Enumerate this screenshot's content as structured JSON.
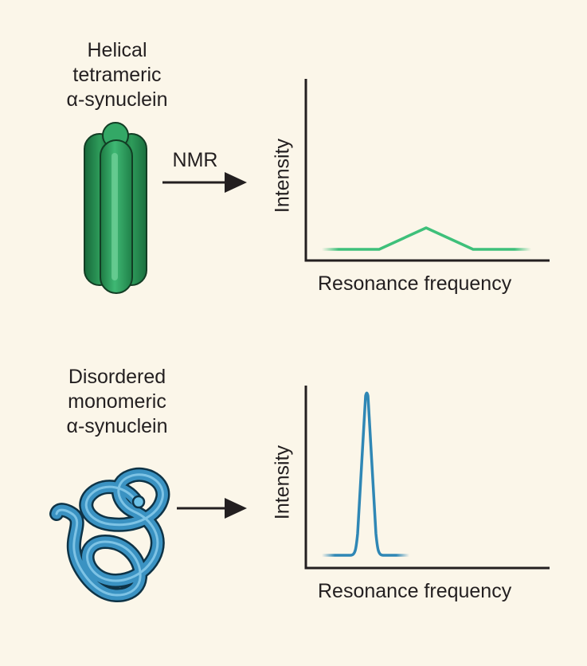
{
  "colors": {
    "background": "#fbf6e9",
    "tetramer_green": "#2e9b5a",
    "monomer_blue": "#2f87b5",
    "axis": "#231f20"
  },
  "top_panel": {
    "protein_label": "Helical\ntetrameric\nα-synuclein",
    "arrow_label": "NMR",
    "y_axis_label": "Intensity",
    "x_axis_label": "Resonance frequency",
    "spectrum_shape": "broad low peak"
  },
  "bottom_panel": {
    "protein_label": "Disordered\nmonomeric\nα-synuclein",
    "y_axis_label": "Intensity",
    "x_axis_label": "Resonance frequency",
    "spectrum_shape": "sharp high peak"
  },
  "icons": {
    "tetramer": "helix-bundle-icon",
    "monomer": "random-coil-icon"
  }
}
